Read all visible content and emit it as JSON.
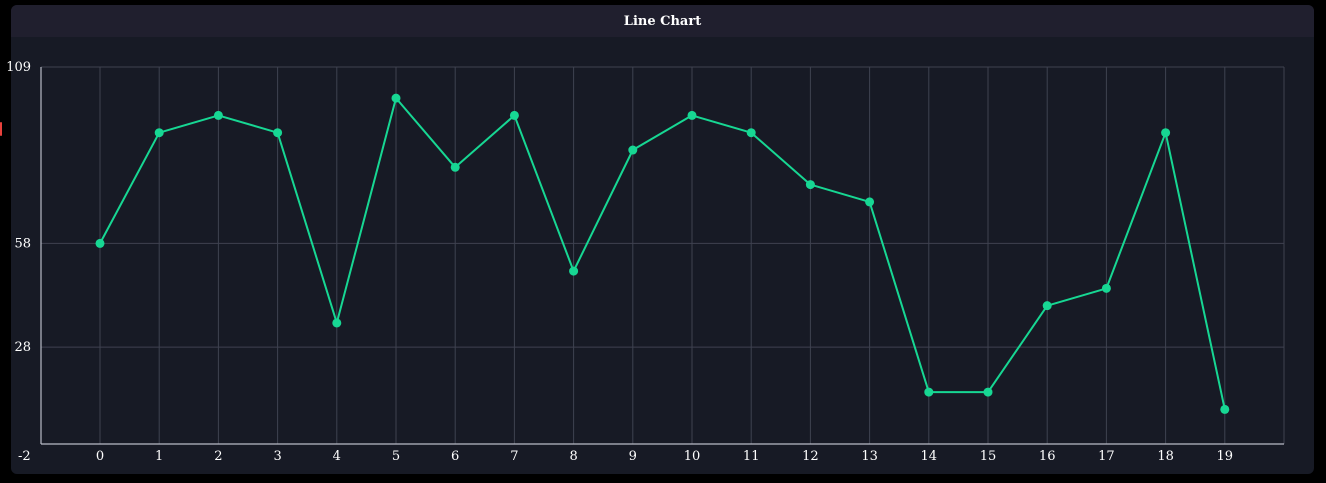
{
  "panel": {
    "title": "Line Chart"
  },
  "colors": {
    "background": "#000000",
    "panel": "#171a25",
    "header": "#201f2e",
    "grid": "#3f4250",
    "axis": "#b9bcc6",
    "series": "#17d793",
    "text": "#ffffff"
  },
  "chart_data": {
    "type": "line",
    "title": "Line Chart",
    "xlabel": "",
    "ylabel": "",
    "x": [
      0,
      1,
      2,
      3,
      4,
      5,
      6,
      7,
      8,
      9,
      10,
      11,
      12,
      13,
      14,
      15,
      16,
      17,
      18,
      19
    ],
    "x_ticks": [
      "-2",
      "0",
      "1",
      "2",
      "3",
      "4",
      "5",
      "6",
      "7",
      "8",
      "9",
      "10",
      "11",
      "12",
      "13",
      "14",
      "15",
      "16",
      "17",
      "18",
      "19"
    ],
    "xlim": [
      -2,
      21
    ],
    "y_ticks": [
      "28",
      "58",
      "109"
    ],
    "ylim": [
      0,
      109
    ],
    "grid": true,
    "legend": "none",
    "series": [
      {
        "values": [
          58,
          90,
          95,
          90,
          35,
          100,
          80,
          95,
          50,
          85,
          95,
          90,
          75,
          70,
          15,
          15,
          40,
          45,
          90,
          10
        ]
      }
    ]
  }
}
